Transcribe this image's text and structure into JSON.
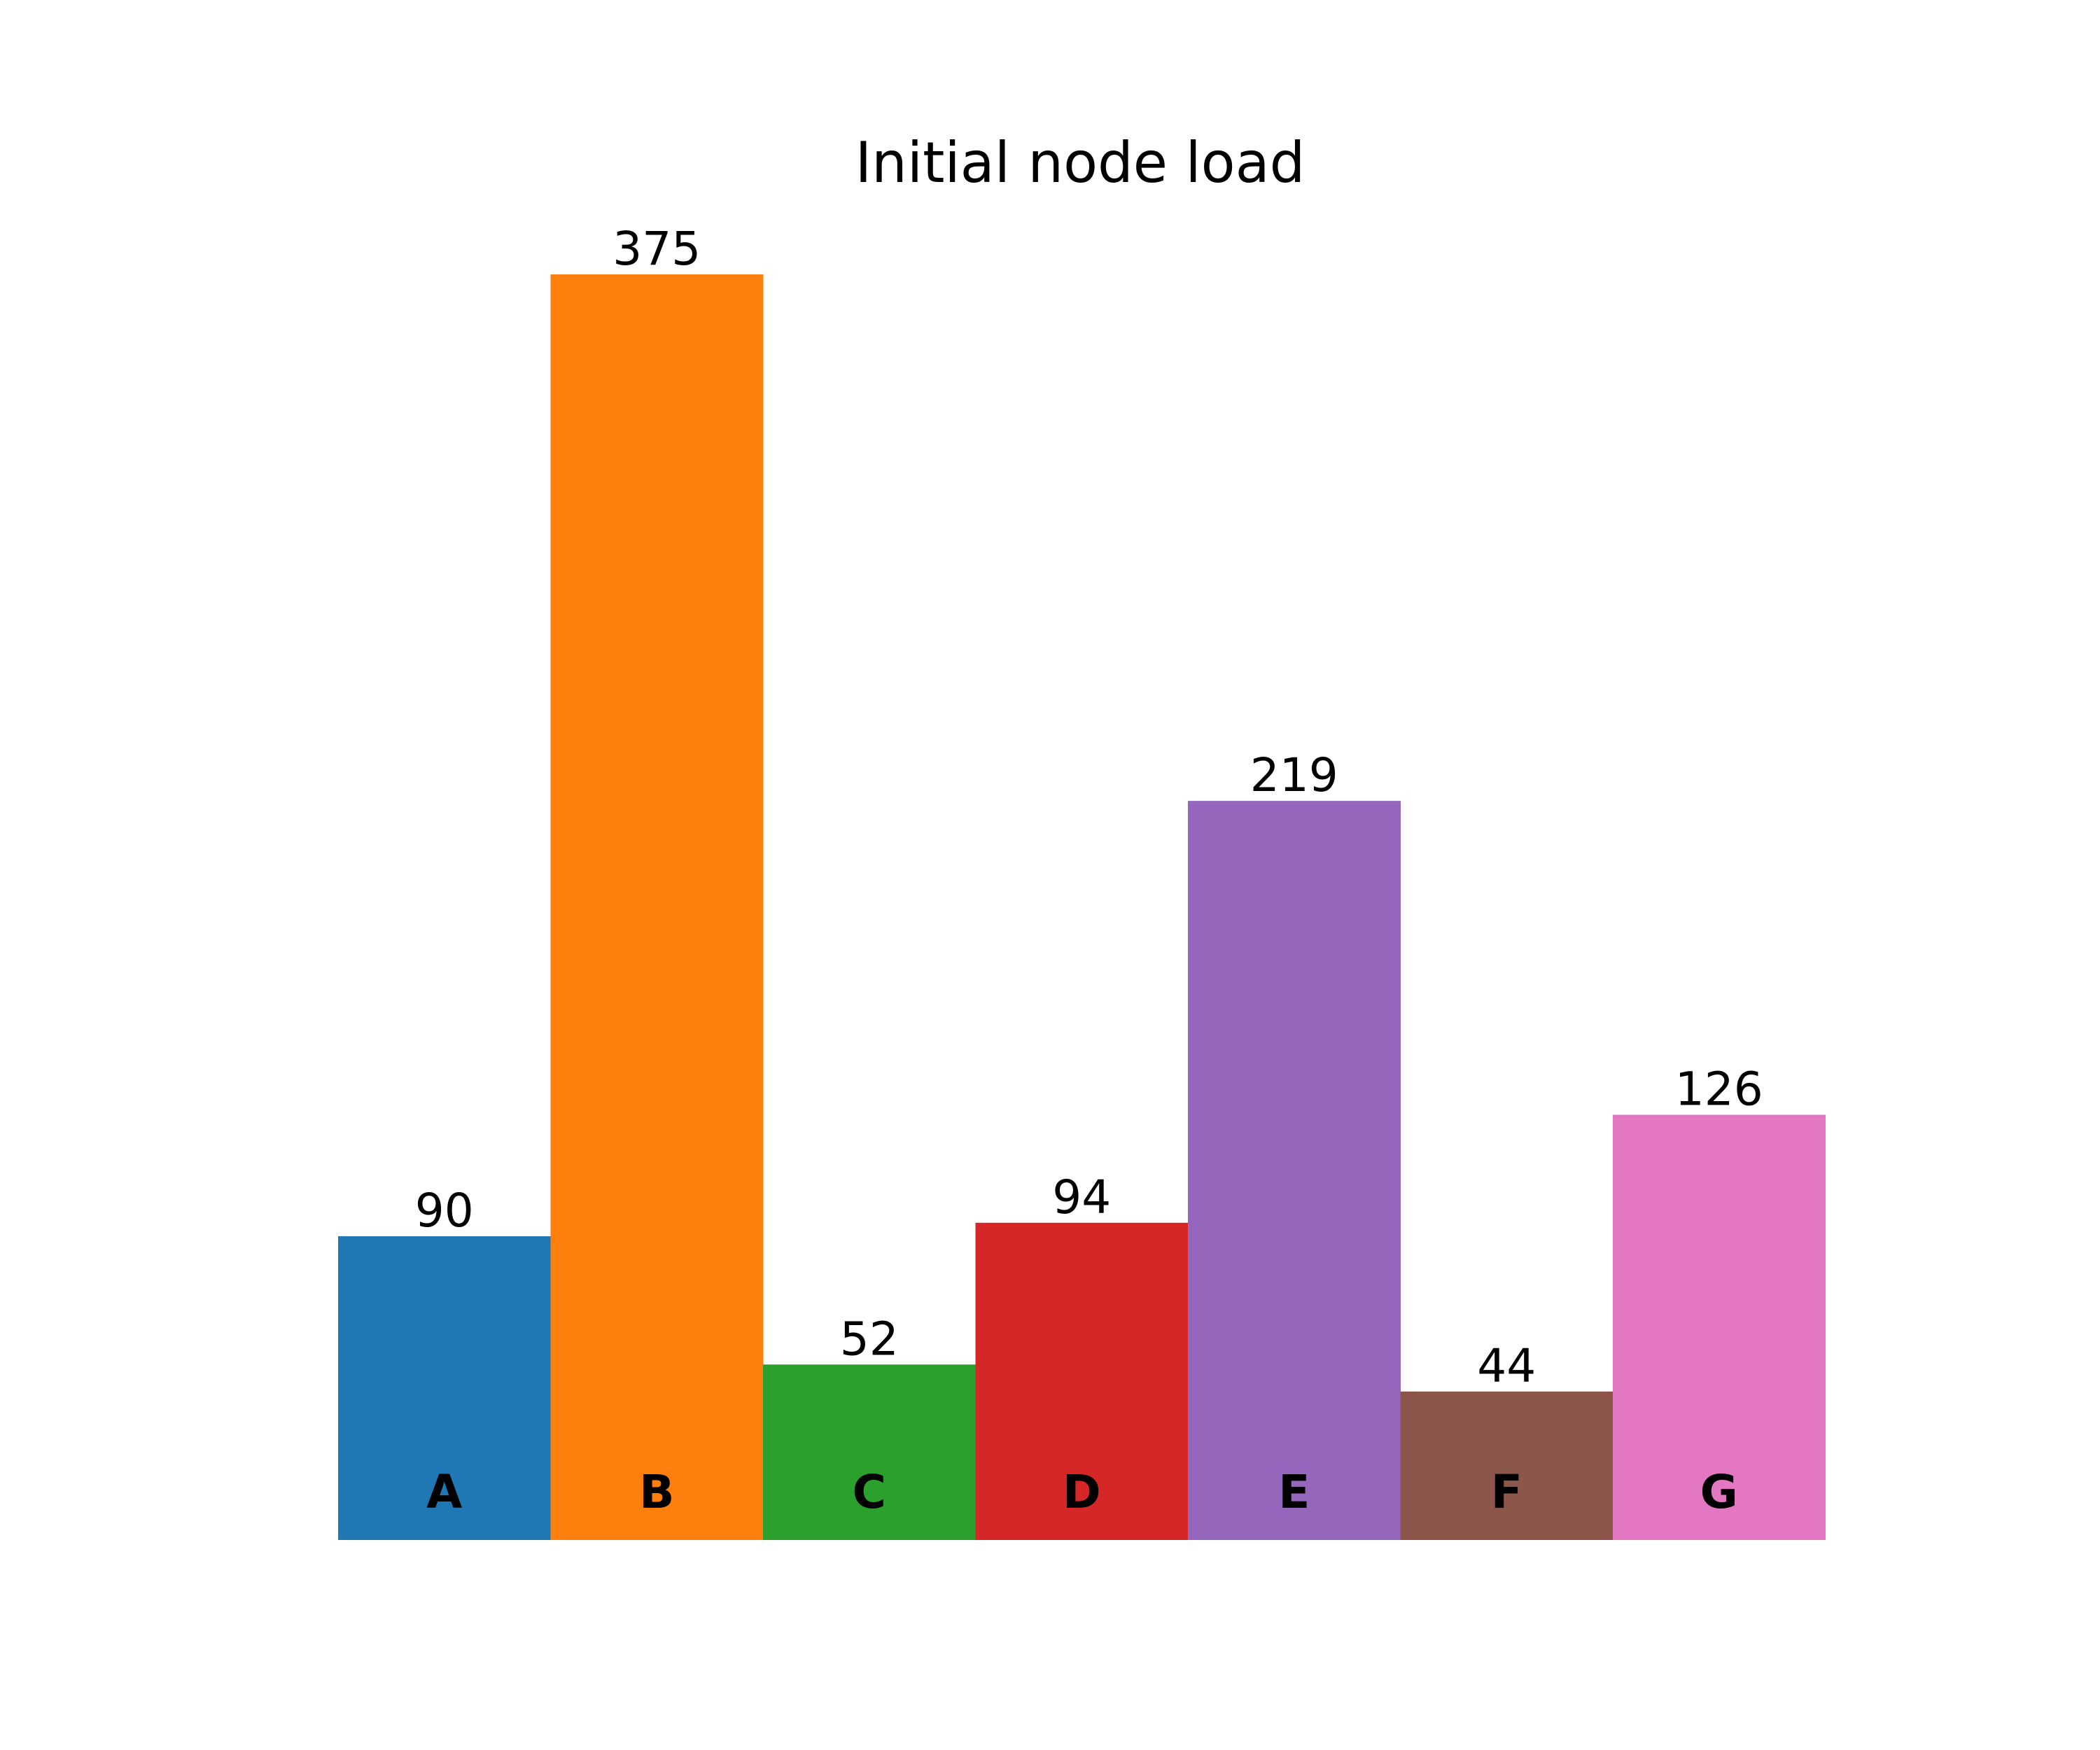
{
  "chart_data": {
    "type": "bar",
    "title": "Initial node load",
    "categories": [
      "A",
      "B",
      "C",
      "D",
      "E",
      "F",
      "G"
    ],
    "values": [
      90,
      375,
      52,
      94,
      219,
      44,
      126
    ],
    "colors": [
      "#1f77b4",
      "#ff7f0e",
      "#2ca02c",
      "#d62728",
      "#9467bd",
      "#8c564b",
      "#e377c2"
    ],
    "xlabel": "",
    "ylabel": "",
    "ylim": [
      0,
      375
    ],
    "grid": false,
    "axes_visible": false,
    "value_labels_visible": true,
    "category_labels_inside_bars": true
  }
}
